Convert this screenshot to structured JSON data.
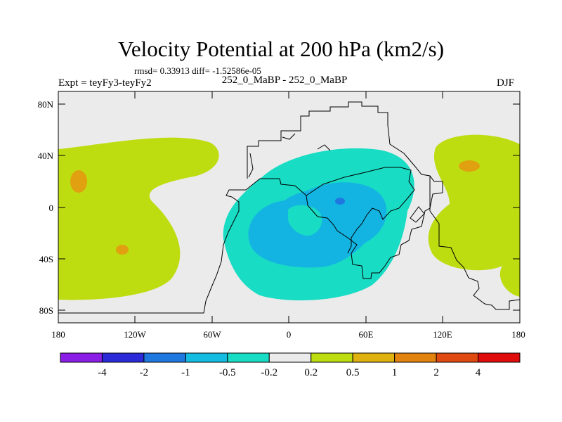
{
  "title": "Velocity Potential at 200 hPa (km2/s)",
  "stats": "rmsd= 0.33913 diff= -1.52586e-05",
  "expt": "Expt = teyFy3-teyFy2",
  "subtitle": "252_0_MaBP - 252_0_MaBP",
  "season": "DJF",
  "lat_ticks": [
    "80N",
    "40N",
    "0",
    "40S",
    "80S"
  ],
  "lon_ticks": [
    "180",
    "120W",
    "60W",
    "0",
    "60E",
    "120E",
    "180"
  ],
  "colorbar": {
    "labels": [
      "-4",
      "-2",
      "-1",
      "-0.5",
      "-0.2",
      "0.2",
      "0.5",
      "1",
      "2",
      "4"
    ],
    "colors": [
      "#8a1ee6",
      "#2a2ad8",
      "#1f78e0",
      "#14bce2",
      "#19dcc4",
      "#ebebeb",
      "#bedd10",
      "#e0b210",
      "#e2820f",
      "#e04a10",
      "#e00c0c"
    ]
  },
  "fill_colors": {
    "neutral": "#ebebeb",
    "pos_low": "#bedd10",
    "pos_mid": "#e0a010",
    "neg_low": "#19dcc4",
    "neg_mid": "#14b4e2",
    "neg_high": "#1f78e0"
  },
  "chart_data": {
    "type": "heatmap",
    "title": "Velocity Potential at 200 hPa (km2/s)",
    "variable": "Velocity Potential",
    "level": "200 hPa",
    "units": "km2/s",
    "season": "DJF",
    "x_range": [
      -180,
      180
    ],
    "y_range": [
      -90,
      90
    ],
    "contour_levels": [
      -4,
      -2,
      -1,
      -0.5,
      -0.2,
      0.2,
      0.5,
      1,
      2,
      4
    ],
    "rmsd": 0.33913,
    "diff": -1.52586e-05
  }
}
